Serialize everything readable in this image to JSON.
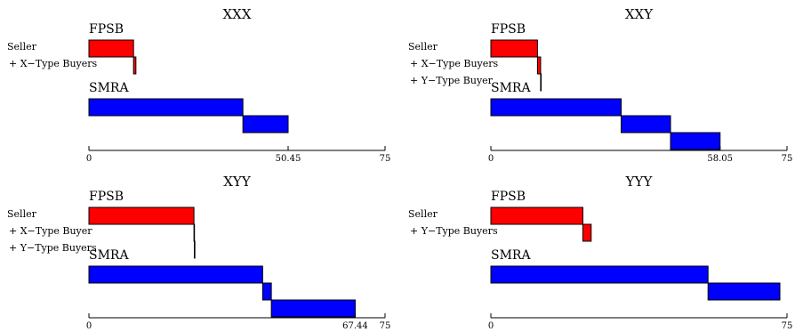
{
  "colors": {
    "fpsb": "#ff0000",
    "smra": "#0000ff"
  },
  "chart_data": [
    {
      "type": "bar",
      "title": "XXX",
      "xlim": [
        0,
        75
      ],
      "fpsb_label": "FPSB",
      "smra_label": "SMRA",
      "rows": [
        "Seller",
        "+ X−Type Buyers"
      ],
      "fpsb": [
        [
          0,
          11.3
        ],
        [
          11.3,
          11.9
        ]
      ],
      "smra": [
        [
          0,
          39.0
        ],
        [
          39.0,
          50.45
        ]
      ],
      "ticks": [
        {
          "v": 0,
          "t": "0"
        },
        {
          "v": 50.45,
          "t": "50.45"
        },
        {
          "v": 75,
          "t": "75"
        }
      ]
    },
    {
      "type": "bar",
      "title": "XXY",
      "xlim": [
        0,
        75
      ],
      "fpsb_label": "FPSB",
      "smra_label": "SMRA",
      "rows": [
        "Seller",
        "+ X−Type Buyers",
        "+ Y−Type Buyer"
      ],
      "fpsb": [
        [
          0,
          11.8
        ],
        [
          11.8,
          12.6
        ],
        [
          12.6,
          12.7
        ]
      ],
      "smra": [
        [
          0,
          33.0
        ],
        [
          33.0,
          45.5
        ],
        [
          45.5,
          58.05
        ]
      ],
      "ticks": [
        {
          "v": 0,
          "t": "0"
        },
        {
          "v": 58.05,
          "t": "58.05"
        },
        {
          "v": 75,
          "t": "75"
        }
      ]
    },
    {
      "type": "bar",
      "title": "XYY",
      "xlim": [
        0,
        75
      ],
      "fpsb_label": "FPSB",
      "smra_label": "SMRA",
      "rows": [
        "Seller",
        "+ X−Type Buyer",
        "+ Y−Type Buyers"
      ],
      "fpsb": [
        [
          0,
          26.6
        ],
        [
          26.6,
          26.7
        ],
        [
          26.7,
          26.8
        ]
      ],
      "smra": [
        [
          0,
          44.0
        ],
        [
          44.0,
          46.2
        ],
        [
          46.2,
          67.44
        ]
      ],
      "ticks": [
        {
          "v": 0,
          "t": "0"
        },
        {
          "v": 67.44,
          "t": "67.44"
        },
        {
          "v": 75,
          "t": "75"
        }
      ]
    },
    {
      "type": "bar",
      "title": "YYY",
      "xlim": [
        0,
        75
      ],
      "fpsb_label": "FPSB",
      "smra_label": "SMRA",
      "rows": [
        "Seller",
        "+ Y−Type Buyers"
      ],
      "fpsb": [
        [
          0,
          23.3
        ],
        [
          23.3,
          25.4
        ]
      ],
      "smra": [
        [
          0,
          55.0
        ],
        [
          55.0,
          73.2
        ]
      ],
      "ticks": [
        {
          "v": 0,
          "t": "0"
        },
        {
          "v": 75,
          "t": "75"
        }
      ]
    }
  ]
}
